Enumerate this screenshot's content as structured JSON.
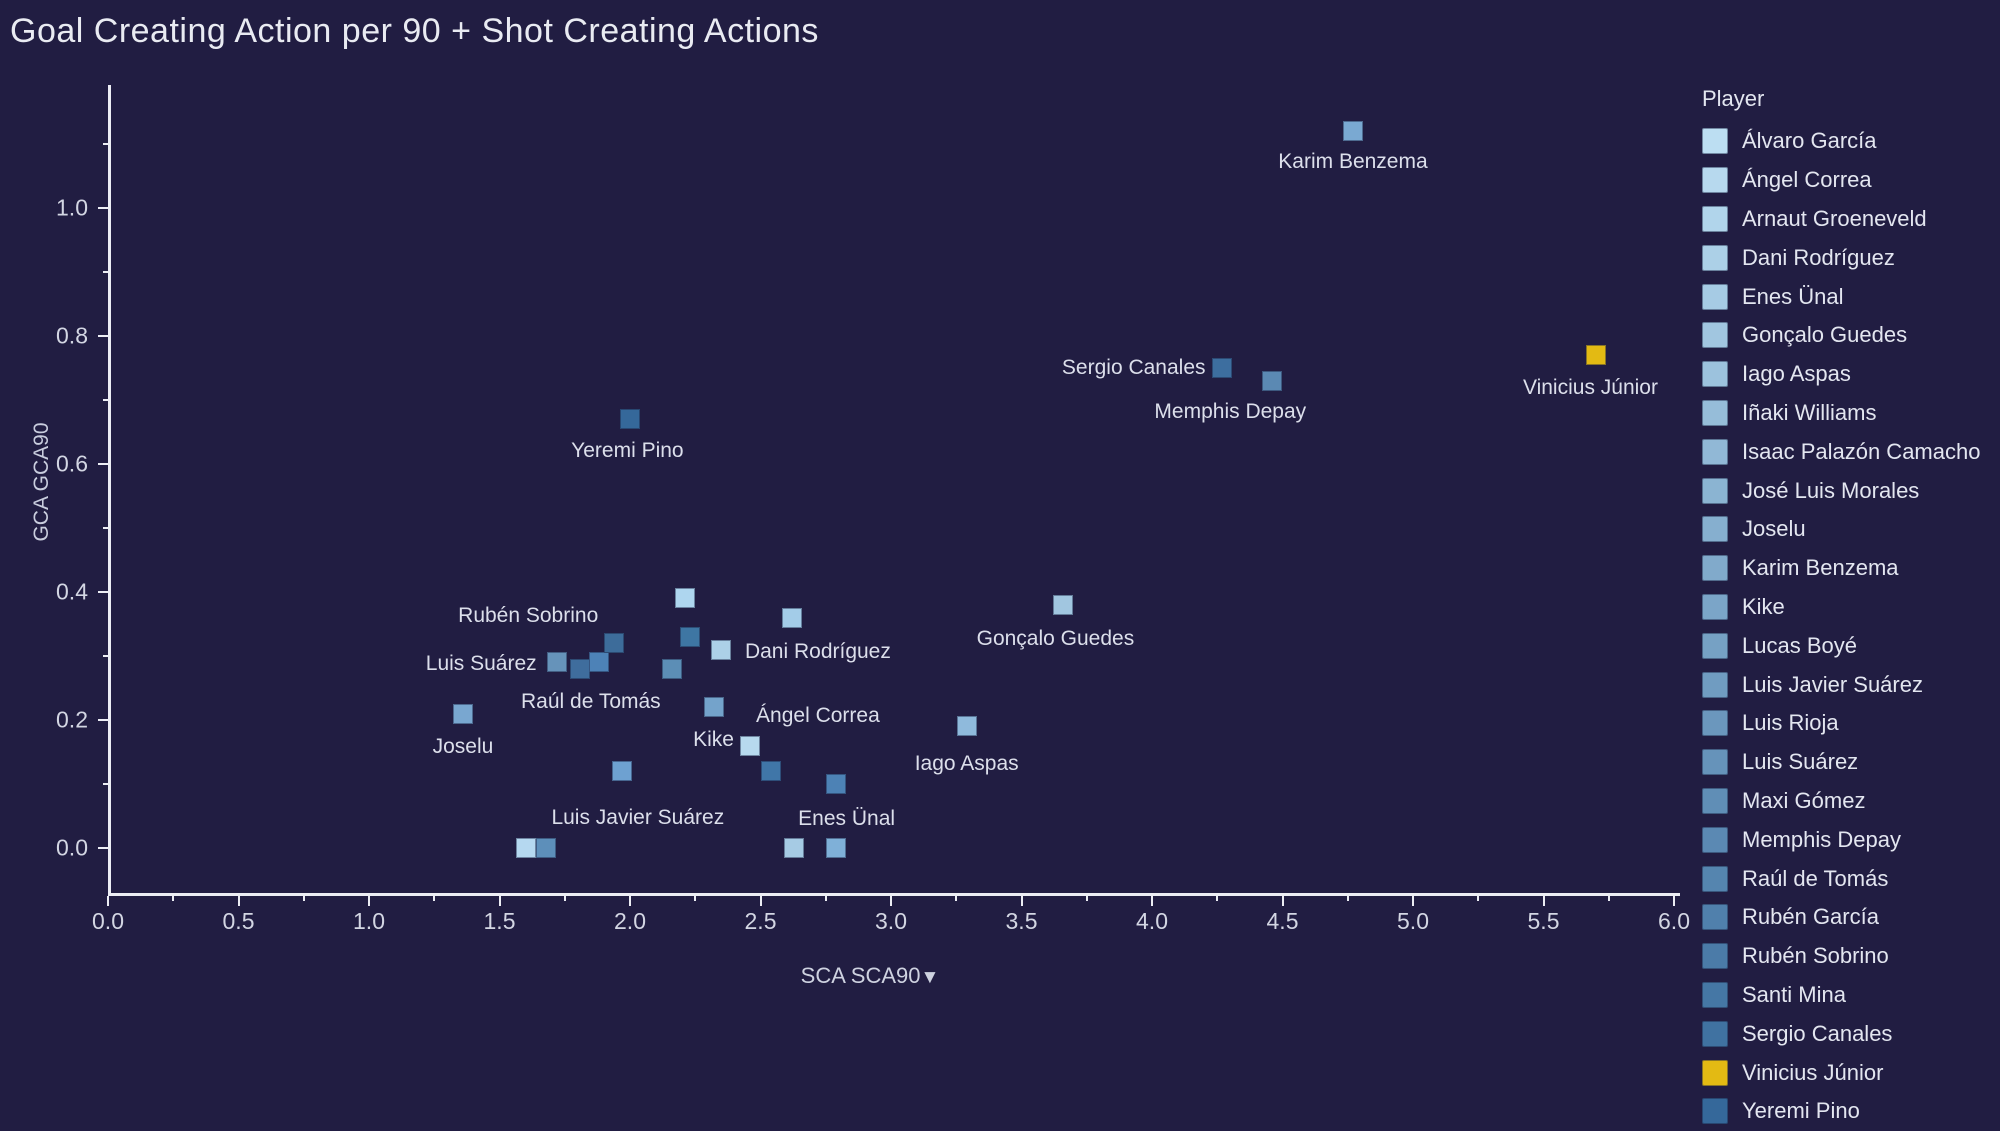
{
  "title": "Goal Creating Action per 90 + Shot Creating Actions",
  "colors": {
    "background": "#211d42",
    "title_text": "#e9ebf2",
    "axis_text": "#d3d6e3",
    "axis_line": "#ecedf4",
    "mark_label_text": "#dcdfeb",
    "highlight_yellow": "#e3ba13"
  },
  "chart_data": {
    "type": "scatter",
    "title": "Goal Creating Action per 90 + Shot Creating Actions",
    "xlabel": "SCA SCA90",
    "x_sort_indicator": "▼",
    "ylabel": "GCA GCA90",
    "xlim": [
      0.0,
      6.15
    ],
    "ylim": [
      0.0,
      1.19
    ],
    "x_ticks": [
      "0.0",
      "0.5",
      "1.0",
      "1.5",
      "2.0",
      "2.5",
      "3.0",
      "3.5",
      "4.0",
      "4.5",
      "5.0",
      "5.5",
      "6.0"
    ],
    "y_ticks": [
      "0.0",
      "0.2",
      "0.4",
      "0.6",
      "0.8",
      "1.0"
    ],
    "grid": false,
    "legend_title": "Player",
    "legend_position": "right",
    "points": [
      {
        "x": 4.77,
        "y": 1.12,
        "color": "#7aa9d2",
        "label": "Karim Benzema",
        "label_x": 4.77,
        "label_y": 1.072
      },
      {
        "x": 5.7,
        "y": 0.77,
        "color": "#e3ba13",
        "label": "Vinicius Júnior",
        "label_x": 5.68,
        "label_y": 0.718
      },
      {
        "x": 4.27,
        "y": 0.75,
        "color": "#3d6e9f",
        "label": "Sergio Canales",
        "label_x": 3.93,
        "label_y": 0.75
      },
      {
        "x": 4.46,
        "y": 0.73,
        "color": "#5b89b3",
        "label": "Memphis Depay",
        "label_x": 4.3,
        "label_y": 0.682
      },
      {
        "x": 2.0,
        "y": 0.67,
        "color": "#35689a",
        "label": "Yeremi Pino",
        "label_x": 1.99,
        "label_y": 0.62
      },
      {
        "x": 3.66,
        "y": 0.38,
        "color": "#a1c6e0",
        "label": "Gonçalo Guedes",
        "label_x": 3.63,
        "label_y": 0.327
      },
      {
        "x": 2.21,
        "y": 0.39,
        "color": "#aed6ef",
        "label": null
      },
      {
        "x": 2.62,
        "y": 0.36,
        "color": "#a3cce8",
        "label": null
      },
      {
        "x": 2.23,
        "y": 0.33,
        "color": "#3e76a3",
        "label": null
      },
      {
        "x": 2.35,
        "y": 0.31,
        "color": "#acd0e7",
        "label": "Dani Rodríguez",
        "label_x": 2.72,
        "label_y": 0.307
      },
      {
        "x": 2.16,
        "y": 0.28,
        "color": "#5c8eb6",
        "label": null
      },
      {
        "x": 1.72,
        "y": 0.29,
        "color": "#6693ba",
        "label": "Luis Suárez",
        "label_x": 1.43,
        "label_y": 0.287
      },
      {
        "x": 1.81,
        "y": 0.28,
        "color": "#3f6d9d",
        "label": "Raúl de Tomás",
        "label_x": 1.85,
        "label_y": 0.228
      },
      {
        "x": 1.88,
        "y": 0.29,
        "color": "#4d82b7",
        "label": null
      },
      {
        "x": 1.94,
        "y": 0.32,
        "color": "#3d6c9a",
        "label": "Rubén Sobrino",
        "label_x": 1.61,
        "label_y": 0.363
      },
      {
        "x": 1.36,
        "y": 0.21,
        "color": "#79a7d0",
        "label": "Joselu",
        "label_x": 1.36,
        "label_y": 0.158
      },
      {
        "x": 2.32,
        "y": 0.22,
        "color": "#74a3cb",
        "label": "Ángel Correa",
        "label_x": 2.72,
        "label_y": 0.206
      },
      {
        "x": 2.46,
        "y": 0.16,
        "color": "#b7d9ee",
        "label": "Kike",
        "label_x": 2.32,
        "label_y": 0.168
      },
      {
        "x": 2.54,
        "y": 0.12,
        "color": "#4076a8",
        "label": null
      },
      {
        "x": 2.79,
        "y": 0.1,
        "color": "#4d82b5",
        "label": null
      },
      {
        "x": 3.29,
        "y": 0.19,
        "color": "#8fbadc",
        "label": "Iago Aspas",
        "label_x": 3.29,
        "label_y": 0.132
      },
      {
        "x": 1.97,
        "y": 0.12,
        "color": "#6ea1d1",
        "label": null
      },
      {
        "x": 1.6,
        "y": 0.0,
        "color": "#b5d8f0",
        "label": null
      },
      {
        "x": 1.68,
        "y": 0.0,
        "color": "#5d8fba",
        "label": "Luis Javier Suárez",
        "label_x": 2.03,
        "label_y": 0.047
      },
      {
        "x": 2.63,
        "y": 0.0,
        "color": "#a6cbe4",
        "label": "Enes Ünal",
        "label_x": 2.83,
        "label_y": 0.046
      },
      {
        "x": 2.79,
        "y": 0.0,
        "color": "#7fb0d8",
        "label": null
      }
    ],
    "legend": [
      {
        "label": "Álvaro García",
        "color": "#bcdef2"
      },
      {
        "label": "Ángel Correa",
        "color": "#b7d9ee"
      },
      {
        "label": "Arnaut Groeneveld",
        "color": "#b1d5eb"
      },
      {
        "label": "Dani Rodríguez",
        "color": "#acd0e7"
      },
      {
        "label": "Enes Ünal",
        "color": "#a6cbe4"
      },
      {
        "label": "Gonçalo Guedes",
        "color": "#a1c6e0"
      },
      {
        "label": "Iago Aspas",
        "color": "#9cc2dd"
      },
      {
        "label": "Iñaki Williams",
        "color": "#96bdd9"
      },
      {
        "label": "Isaac Palazón Camacho",
        "color": "#91b8d6"
      },
      {
        "label": "José Luis Morales",
        "color": "#8bb4d2"
      },
      {
        "label": "Joselu",
        "color": "#86afcf"
      },
      {
        "label": "Karim Benzema",
        "color": "#81aacb"
      },
      {
        "label": "Kike",
        "color": "#7ba5c8"
      },
      {
        "label": "Lucas Boyé",
        "color": "#76a1c4"
      },
      {
        "label": "Luis Javier Suárez",
        "color": "#709cc1"
      },
      {
        "label": "Luis Rioja",
        "color": "#6b97bd"
      },
      {
        "label": "Luis Suárez",
        "color": "#6693ba"
      },
      {
        "label": "Maxi Gómez",
        "color": "#608eb6"
      },
      {
        "label": "Memphis Depay",
        "color": "#5b89b3"
      },
      {
        "label": "Raúl de Tomás",
        "color": "#5585af"
      },
      {
        "label": "Rubén García",
        "color": "#5080ac"
      },
      {
        "label": "Rubén Sobrino",
        "color": "#4b7ba8"
      },
      {
        "label": "Santi Mina",
        "color": "#4577a5"
      },
      {
        "label": "Sergio Canales",
        "color": "#4072a1"
      },
      {
        "label": "Vinicius Júnior",
        "color": "#e3ba13"
      },
      {
        "label": "Yeremi Pino",
        "color": "#35689a"
      }
    ]
  }
}
